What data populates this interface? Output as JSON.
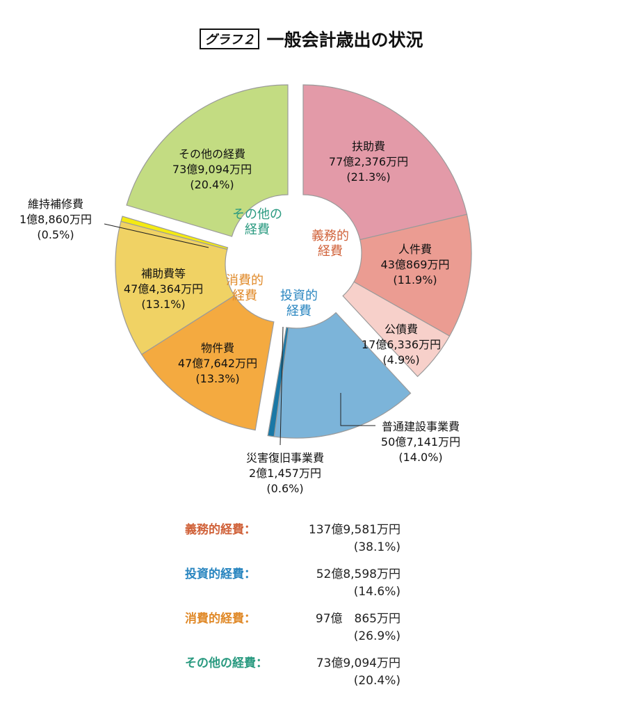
{
  "title": {
    "tag": "グラフ２",
    "text": "一般会計歳出の状況"
  },
  "chart_data": {
    "type": "pie",
    "title": "一般会計歳出の状況",
    "groups": [
      {
        "name": "義務的経費",
        "label": [
          "義務的",
          "経費"
        ],
        "color": "#d0623a",
        "amount": "137億9,581万円",
        "percent": "(38.1%)",
        "value": 38.1
      },
      {
        "name": "投資的経費",
        "label": [
          "投資的",
          "経費"
        ],
        "color": "#2a86c0",
        "amount": "52億8,598万円",
        "percent": "(14.6%)",
        "value": 14.6
      },
      {
        "name": "消費的経費",
        "label": [
          "消費的",
          "経費"
        ],
        "color": "#e08a2a",
        "amount": "97億　865万円",
        "percent": "(26.9%)",
        "value": 26.9
      },
      {
        "name": "その他の経費",
        "label": [
          "その他の",
          "経費"
        ],
        "color": "#2a9a80",
        "amount": "73億9,094万円",
        "percent": "(20.4%)",
        "value": 20.4
      }
    ],
    "slices": [
      {
        "name": "扶助費",
        "amount": "77億2,376万円",
        "percent": "(21.3%)",
        "value": 21.3,
        "group": 0,
        "color": "#e39aa8"
      },
      {
        "name": "人件費",
        "amount": "43億869万円",
        "percent": "(11.9%)",
        "value": 11.9,
        "group": 0,
        "color": "#eb9c92"
      },
      {
        "name": "公債費",
        "amount": "17億6,336万円",
        "percent": "(4.9%)",
        "value": 4.9,
        "group": 0,
        "color": "#f7d0ca"
      },
      {
        "name": "普通建設事業費",
        "amount": "50億7,141万円",
        "percent": "(14.0%)",
        "value": 14.0,
        "group": 1,
        "color": "#7cb4d9"
      },
      {
        "name": "災害復旧事業費",
        "amount": "2億1,457万円",
        "percent": "(0.6%)",
        "value": 0.6,
        "group": 1,
        "color": "#1a78a6"
      },
      {
        "name": "物件費",
        "amount": "47億7,642万円",
        "percent": "(13.3%)",
        "value": 13.3,
        "group": 2,
        "color": "#f4aa40"
      },
      {
        "name": "補助費等",
        "amount": "47億4,364万円",
        "percent": "(13.1%)",
        "value": 13.1,
        "group": 2,
        "color": "#f0d264"
      },
      {
        "name": "維持補修費",
        "amount": "1億8,860万円",
        "percent": "(0.5%)",
        "value": 0.5,
        "group": 2,
        "color": "#f4ea12"
      },
      {
        "name": "その他の経費",
        "amount": "73億9,094万円",
        "percent": "(20.4%)",
        "value": 20.4,
        "group": 3,
        "color": "#c3dc82"
      }
    ],
    "summary_separator": "："
  }
}
